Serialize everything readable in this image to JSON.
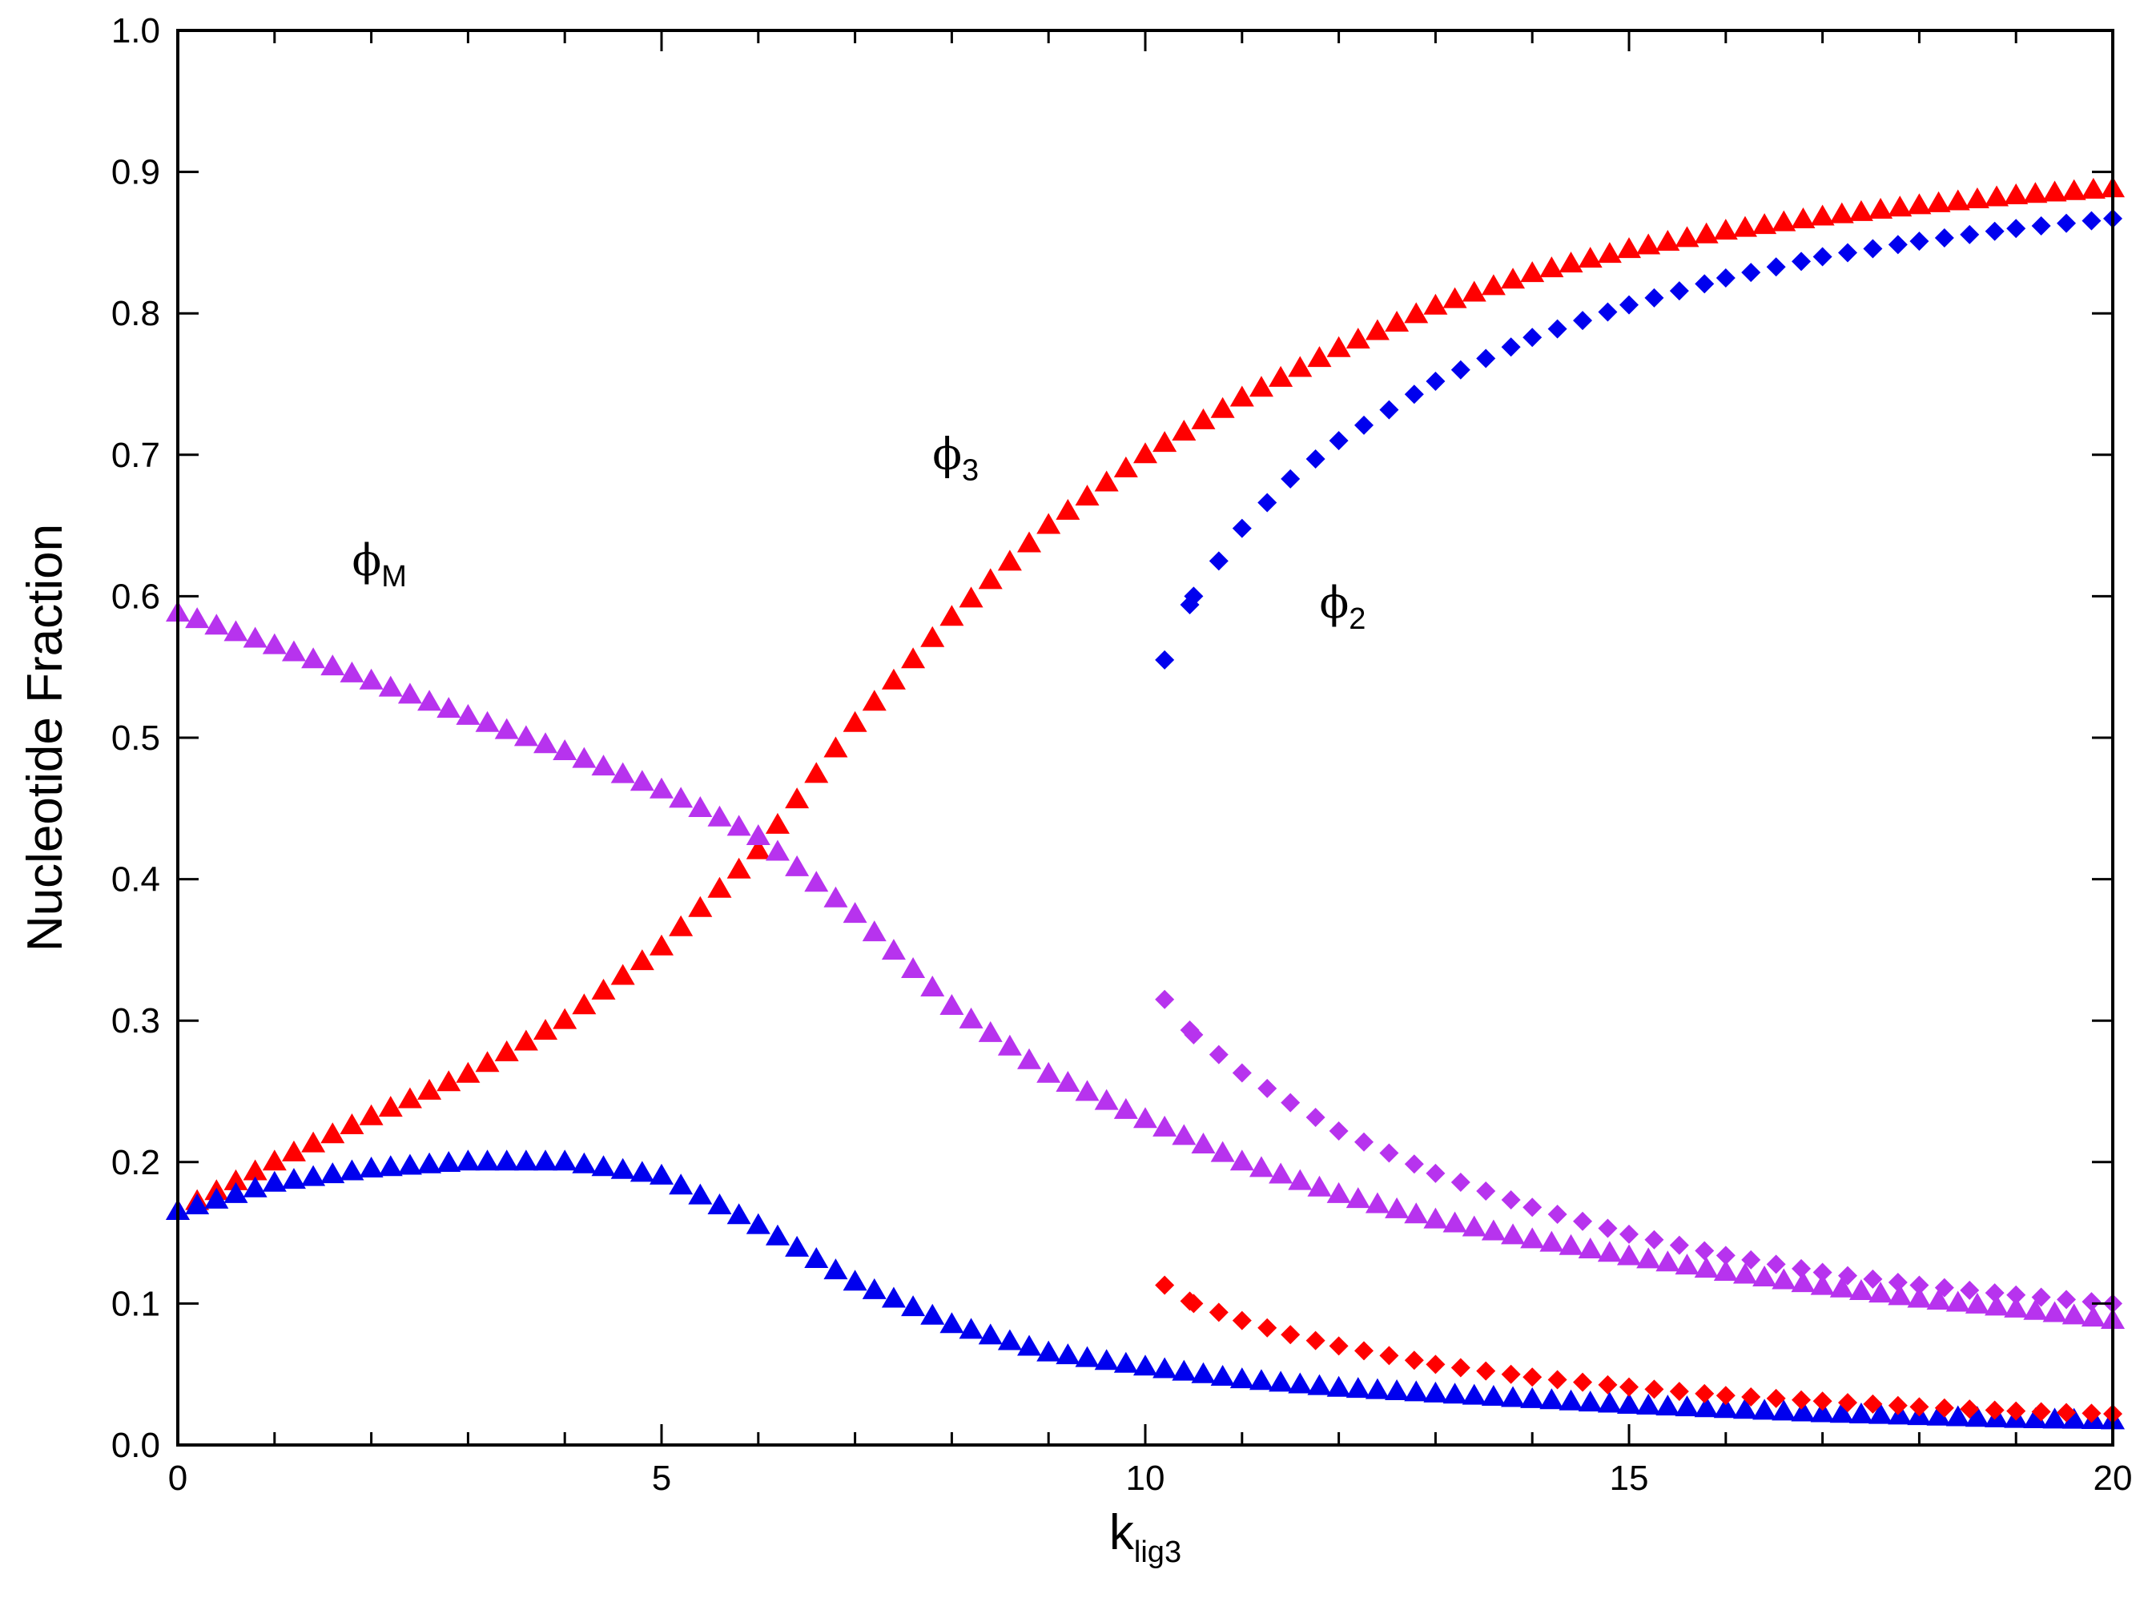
{
  "chart_data": {
    "type": "scatter",
    "xlabel": {
      "base": "k",
      "sub": "lig3"
    },
    "ylabel": "Nucleotide Fraction",
    "xlim": [
      0,
      20
    ],
    "ylim": [
      0,
      1.0
    ],
    "x_ticks": [
      "0",
      "5",
      "10",
      "15",
      "20"
    ],
    "y_ticks": [
      "0.0",
      "0.1",
      "0.2",
      "0.3",
      "0.4",
      "0.5",
      "0.6",
      "0.7",
      "0.8",
      "0.9",
      "1.0"
    ],
    "grid": false,
    "legend": "none",
    "annotations": [
      {
        "base": "ϕ",
        "sub": "M",
        "x": 1.8,
        "y": 0.615
      },
      {
        "base": "ϕ",
        "sub": "3",
        "x": 7.8,
        "y": 0.69
      },
      {
        "base": "ϕ",
        "sub": "2",
        "x": 11.8,
        "y": 0.585
      }
    ],
    "series": [
      {
        "id": "phi3-triangle",
        "marker": "triangle",
        "color": "#ff0000",
        "x": [
          0,
          1,
          2,
          3,
          4,
          5,
          6,
          7,
          8,
          9,
          10,
          11,
          12,
          13,
          14,
          15,
          16,
          17,
          18,
          19,
          20
        ],
        "y": [
          0.165,
          0.2,
          0.232,
          0.262,
          0.3,
          0.352,
          0.42,
          0.51,
          0.585,
          0.65,
          0.7,
          0.74,
          0.775,
          0.805,
          0.828,
          0.845,
          0.858,
          0.868,
          0.876,
          0.883,
          0.888
        ]
      },
      {
        "id": "phiM-triangle",
        "marker": "triangle",
        "color": "#b733ee",
        "x": [
          0,
          1,
          2,
          3,
          4,
          5,
          6,
          7,
          8,
          9,
          10,
          11,
          12,
          13,
          14,
          15,
          16,
          17,
          18,
          19,
          20
        ],
        "y": [
          0.588,
          0.565,
          0.54,
          0.515,
          0.49,
          0.463,
          0.43,
          0.375,
          0.31,
          0.262,
          0.23,
          0.2,
          0.177,
          0.159,
          0.145,
          0.133,
          0.122,
          0.112,
          0.103,
          0.096,
          0.088
        ]
      },
      {
        "id": "phi2-triangle",
        "marker": "triangle",
        "color": "#0000ee",
        "x": [
          0,
          1,
          2,
          3,
          4,
          5,
          6,
          7,
          8,
          9,
          10,
          11,
          12,
          13,
          14,
          15,
          16,
          17,
          18,
          19,
          20
        ],
        "y": [
          0.165,
          0.185,
          0.195,
          0.2,
          0.2,
          0.19,
          0.155,
          0.115,
          0.085,
          0.065,
          0.055,
          0.046,
          0.04,
          0.036,
          0.032,
          0.028,
          0.025,
          0.022,
          0.02,
          0.018,
          0.017
        ]
      },
      {
        "id": "phi2-diamond",
        "marker": "diamond",
        "color": "#0000ee",
        "x": [
          10.2,
          10.5,
          11,
          11.5,
          12,
          13,
          14,
          15,
          16,
          17,
          18,
          19,
          20
        ],
        "y": [
          0.555,
          0.6,
          0.648,
          0.683,
          0.71,
          0.752,
          0.783,
          0.806,
          0.825,
          0.84,
          0.851,
          0.86,
          0.867
        ]
      },
      {
        "id": "phiM-diamond",
        "marker": "diamond",
        "color": "#b733ee",
        "x": [
          10.2,
          10.5,
          11,
          11.5,
          12,
          13,
          14,
          15,
          16,
          17,
          18,
          19,
          20
        ],
        "y": [
          0.315,
          0.29,
          0.263,
          0.242,
          0.222,
          0.192,
          0.168,
          0.149,
          0.134,
          0.122,
          0.113,
          0.106,
          0.1
        ]
      },
      {
        "id": "phi3-diamond",
        "marker": "diamond",
        "color": "#ff0000",
        "x": [
          10.2,
          10.5,
          11,
          11.5,
          12,
          13,
          14,
          15,
          16,
          17,
          18,
          19,
          20
        ],
        "y": [
          0.113,
          0.1,
          0.088,
          0.078,
          0.07,
          0.057,
          0.048,
          0.041,
          0.035,
          0.031,
          0.027,
          0.024,
          0.022
        ]
      }
    ]
  }
}
